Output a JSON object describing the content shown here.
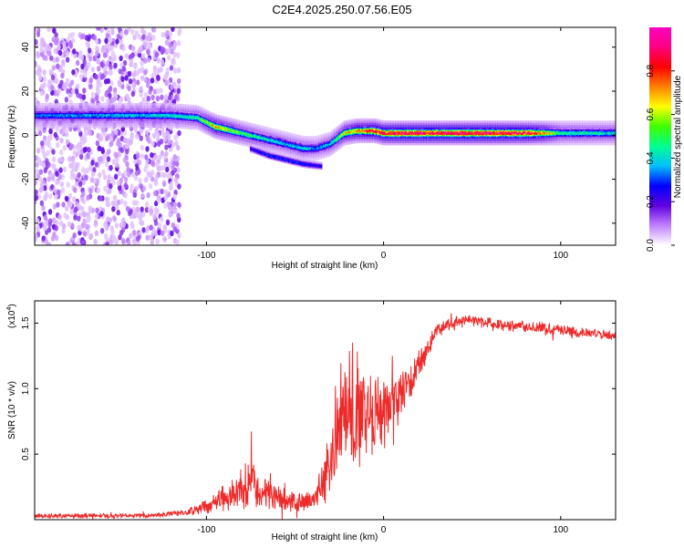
{
  "title": "C2E4.2025.250.07.56.E05",
  "chart_data": [
    {
      "type": "heatmap",
      "name": "spectrogram",
      "xlabel": "Height of straight line (km)",
      "ylabel": "Frequency (Hz)",
      "xlim": [
        -197,
        131
      ],
      "ylim": [
        -50,
        49
      ],
      "xticks": [
        -100,
        0,
        100
      ],
      "yticks": [
        -40,
        -20,
        0,
        20,
        40
      ],
      "colorbar": {
        "label": "Normalized spectral amplitude",
        "range": [
          0,
          1
        ],
        "ticks": [
          "0.0",
          "0.2",
          "0.4",
          "0.6",
          "0.8"
        ],
        "tick_values": [
          0,
          0.2,
          0.4,
          0.6,
          0.8
        ],
        "colors": [
          "#ffffff",
          "#c080ff",
          "#6000e0",
          "#0000ff",
          "#00c0ff",
          "#00ff90",
          "#40ff00",
          "#ffff00",
          "#ff8000",
          "#ff0000",
          "#ff0080",
          "#ff00c0"
        ]
      },
      "ridge": {
        "x": [
          -197,
          -120,
          -105,
          -95,
          -80,
          -65,
          -55,
          -45,
          -38,
          -30,
          -22,
          -15,
          -5,
          0,
          10,
          30,
          60,
          80,
          90,
          100,
          131
        ],
        "y": [
          9,
          9,
          8,
          4,
          1,
          -2,
          -4,
          -6,
          -6,
          -4,
          1,
          2,
          2,
          1,
          1,
          1,
          1,
          1,
          1,
          1,
          1
        ],
        "amplitude": [
          0.35,
          0.45,
          0.5,
          0.75,
          0.55,
          0.45,
          0.4,
          0.45,
          0.35,
          0.45,
          0.7,
          0.8,
          0.9,
          0.95,
          1.0,
          1.0,
          1.0,
          0.95,
          0.8,
          0.5,
          0.45
        ]
      },
      "side_branch": {
        "x": [
          -75,
          -65,
          -55,
          -45,
          -35
        ],
        "y": [
          -6,
          -9,
          -11,
          -13,
          -14
        ],
        "amplitude": [
          0.25,
          0.3,
          0.3,
          0.3,
          0.25
        ]
      },
      "noise_band_x": [
        -197,
        -115
      ]
    },
    {
      "type": "line",
      "name": "snr",
      "xlabel": "Height of straight line (km)",
      "ylabel": "SNR (10 * v/v)",
      "scale_label": "(x10",
      "scale_exponent": "4",
      "xlim": [
        -197,
        131
      ],
      "ylim": [
        0,
        1.67
      ],
      "xticks": [
        -100,
        0,
        100
      ],
      "yticks": [
        "0.5",
        "1.0",
        "1.5"
      ],
      "ytick_values": [
        0.5,
        1.0,
        1.5
      ],
      "color": "#ee2a2a",
      "series_description_points": {
        "x": [
          -197,
          -130,
          -110,
          -100,
          -90,
          -80,
          -75,
          -70,
          -60,
          -50,
          -40,
          -35,
          -30,
          -25,
          -20,
          -15,
          -10,
          -5,
          0,
          5,
          10,
          15,
          20,
          25,
          30,
          40,
          50,
          60,
          70,
          80,
          90,
          100,
          110,
          120,
          131
        ],
        "y": [
          0.03,
          0.03,
          0.06,
          0.1,
          0.16,
          0.24,
          0.3,
          0.2,
          0.16,
          0.13,
          0.15,
          0.25,
          0.45,
          0.8,
          0.85,
          0.9,
          0.85,
          0.82,
          0.8,
          0.85,
          0.95,
          1.05,
          1.2,
          1.32,
          1.45,
          1.5,
          1.52,
          1.5,
          1.48,
          1.47,
          1.46,
          1.45,
          1.43,
          1.42,
          1.4
        ],
        "noise": [
          0.015,
          0.015,
          0.02,
          0.05,
          0.08,
          0.12,
          0.18,
          0.1,
          0.08,
          0.06,
          0.06,
          0.12,
          0.25,
          0.35,
          0.4,
          0.4,
          0.3,
          0.28,
          0.25,
          0.2,
          0.16,
          0.12,
          0.1,
          0.07,
          0.05,
          0.04,
          0.04,
          0.035,
          0.035,
          0.035,
          0.04,
          0.035,
          0.03,
          0.03,
          0.03
        ]
      }
    }
  ]
}
